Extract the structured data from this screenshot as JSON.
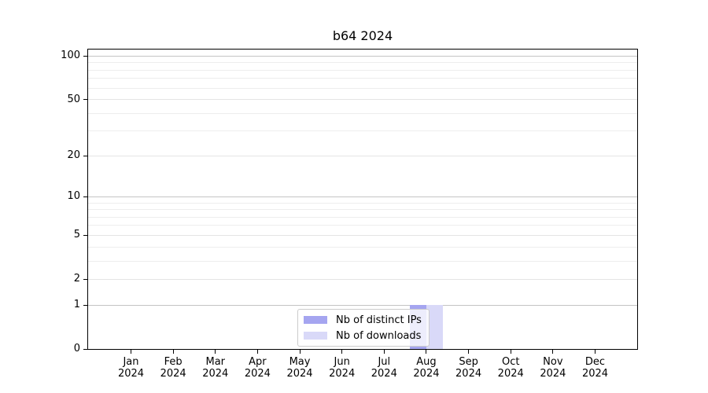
{
  "chart_data": {
    "type": "bar",
    "title": "b64 2024",
    "categories": [
      "Jan",
      "Feb",
      "Mar",
      "Apr",
      "May",
      "Jun",
      "Jul",
      "Aug",
      "Sep",
      "Oct",
      "Nov",
      "Dec"
    ],
    "category_year": "2024",
    "series": [
      {
        "name": "Nb of distinct IPs",
        "color": "#a5a5f0",
        "values": [
          0,
          0,
          0,
          0,
          0,
          0,
          0,
          1,
          0,
          0,
          0,
          0
        ]
      },
      {
        "name": "Nb of downloads",
        "color": "#d9d9f8",
        "values": [
          0,
          0,
          0,
          0,
          0,
          0,
          0,
          1,
          0,
          0,
          0,
          0
        ]
      }
    ],
    "y_axis": {
      "scale": "log1p",
      "ylim": [
        0,
        111
      ],
      "major_ticks": [
        0,
        1,
        2,
        5,
        10,
        20,
        50,
        100
      ],
      "emphasized_gridlines": [
        1,
        10,
        100
      ],
      "minor_gridlines": [
        3,
        4,
        6,
        7,
        8,
        9,
        30,
        40,
        60,
        70,
        80,
        90
      ]
    },
    "legend": {
      "position": "bottom-center"
    },
    "grid": true,
    "colors": {
      "grid_emphasized": "#c4c4c4",
      "grid_major": "#e4e4e4",
      "grid_minor": "#ededed",
      "spine": "#000000",
      "text": "#000000",
      "legend_border": "#cccccc",
      "legend_background": "rgba(255,255,255,0.8)"
    }
  }
}
